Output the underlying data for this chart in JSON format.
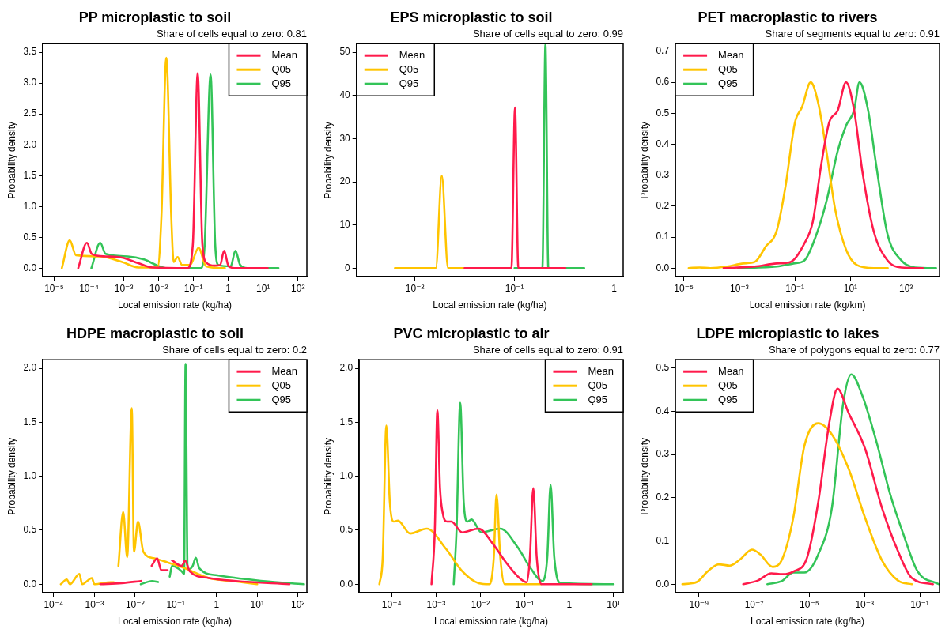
{
  "chart_data": [
    {
      "type": "line",
      "title": "PP microplastic to soil",
      "subtitle": "Share of cells equal to zero: 0.81",
      "xlabel": "Local emission rate (kg/ha)",
      "ylabel": "Probability density",
      "log": "x",
      "legend": "top right",
      "xlim": [
        4.7e-06,
        180
      ],
      "ylim": [
        -0.14,
        3.64
      ],
      "xticks": [
        {
          "value": 1e-05,
          "label": "10⁻⁵"
        },
        {
          "value": 0.0001,
          "label": "10⁻⁴"
        },
        {
          "value": 0.001,
          "label": "10⁻³"
        },
        {
          "value": 0.01,
          "label": "10⁻²"
        },
        {
          "value": 0.1,
          "label": "10⁻¹"
        },
        {
          "value": 1,
          "label": "1"
        },
        {
          "value": 10,
          "label": "10¹"
        },
        {
          "value": 100,
          "label": "10²"
        }
      ],
      "yticks": [
        {
          "value": 0,
          "label": "0.0"
        },
        0.5,
        {
          "value": 1,
          "label": "1.0"
        },
        1.5,
        {
          "value": 2,
          "label": "2.0"
        },
        2.5,
        {
          "value": 3,
          "label": "3.0"
        },
        3.5
      ],
      "series": [
        {
          "name": "Mean",
          "color": "#ff1a4b",
          "x": [
            4.9e-05,
            8.7e-05,
            0.00012,
            0.0003,
            0.00089,
            0.0026,
            0.0065,
            0.068,
            0.096,
            0.132,
            0.18,
            0.234,
            0.4,
            0.58,
            0.76,
            1.02,
            1.7,
            13.5
          ],
          "values": [
            0,
            0.41,
            0.23,
            0.19,
            0.17,
            0.08,
            0.01,
            0,
            0.39,
            3.16,
            0.39,
            0.09,
            0.04,
            0.05,
            0.28,
            0.03,
            0,
            0
          ]
        },
        {
          "name": "Q05",
          "color": "#ffc400",
          "x": [
            1.66e-05,
            2.8e-05,
            4.2e-05,
            0.00021,
            0.00089,
            0.0026,
            0.0093,
            0.012,
            0.0166,
            0.023,
            0.027,
            0.035,
            0.047,
            0.08,
            0.14,
            0.23,
            0.8
          ],
          "values": [
            0,
            0.45,
            0.21,
            0.19,
            0.1,
            0.01,
            0.01,
            0.84,
            3.41,
            0.84,
            0.1,
            0.18,
            0.05,
            0.05,
            0.33,
            0.03,
            0
          ]
        },
        {
          "name": "Q95",
          "color": "#33c458",
          "x": [
            0.000117,
            0.00021,
            0.0003,
            0.0013,
            0.0038,
            0.0093,
            0.016,
            0.166,
            0.21,
            0.31,
            0.42,
            0.52,
            1.17,
            1.6,
            2.2,
            3.5,
            27.5
          ],
          "values": [
            0,
            0.41,
            0.23,
            0.19,
            0.14,
            0.04,
            0,
            0,
            0.39,
            3.14,
            0.39,
            0.05,
            0.03,
            0.28,
            0.05,
            0,
            0
          ]
        }
      ]
    },
    {
      "type": "line",
      "title": "EPS microplastic to soil",
      "subtitle": "Share of cells equal to zero: 0.99",
      "xlabel": "Local emission rate (kg/ha)",
      "ylabel": "Probability density",
      "log": "x",
      "legend": "top left",
      "xlim": [
        0.00259,
        1.23
      ],
      "ylim": [
        -2,
        52
      ],
      "xticks": [
        {
          "value": 0.01,
          "label": "10⁻²"
        },
        {
          "value": 0.1,
          "label": "10⁻¹"
        },
        {
          "value": 1,
          "label": "1"
        }
      ],
      "yticks": [
        0,
        10,
        20,
        30,
        40,
        50
      ],
      "series": [
        {
          "name": "Mean",
          "color": "#ff1a4b",
          "x": [
            0.0315,
            0.093,
            0.101,
            0.109,
            0.323
          ],
          "values": [
            0,
            0,
            37.2,
            0,
            0
          ]
        },
        {
          "name": "Q05",
          "color": "#ffc400",
          "x": [
            0.0063,
            0.0162,
            0.0186,
            0.0215,
            0.0315
          ],
          "values": [
            0,
            0,
            21.4,
            0,
            0
          ]
        },
        {
          "name": "Q95",
          "color": "#33c458",
          "x": [
            0.1,
            0.19,
            0.204,
            0.218,
            0.5
          ],
          "values": [
            0,
            0,
            51.8,
            0,
            0
          ]
        }
      ]
    },
    {
      "type": "line",
      "title": "PET macroplastic to rivers",
      "subtitle": "Share of segments equal to zero: 0.91",
      "xlabel": "Local emission rate (kg/km)",
      "ylabel": "Probability density",
      "log": "x",
      "legend": "top left",
      "xlim": [
        5e-06,
        16000
      ],
      "ylim": [
        -0.028,
        0.725
      ],
      "xticks": [
        {
          "value": 1e-05,
          "label": "10⁻⁵"
        },
        {
          "value": 0.001,
          "label": "10⁻³"
        },
        {
          "value": 0.1,
          "label": "10⁻¹"
        },
        {
          "value": 10,
          "label": "10¹"
        },
        {
          "value": 1000,
          "label": "10³"
        }
      ],
      "yticks": [
        {
          "value": 0,
          "label": "0.0"
        },
        0.1,
        0.2,
        0.3,
        0.4,
        0.5,
        0.6,
        0.7
      ],
      "series": [
        {
          "name": "Mean",
          "color": "#ff1a4b",
          "x": [
            0.00027,
            0.0036,
            0.022,
            0.07,
            0.22,
            0.44,
            0.87,
            1.7,
            3.5,
            6.9,
            13.5,
            27,
            68,
            214,
            670,
            4000
          ],
          "values": [
            0,
            0.005,
            0.015,
            0.02,
            0.08,
            0.15,
            0.33,
            0.47,
            0.51,
            0.6,
            0.51,
            0.31,
            0.12,
            0.025,
            0.002,
            0
          ]
        },
        {
          "name": "Q05",
          "color": "#ffc400",
          "x": [
            1.5e-05,
            3.7e-05,
            9e-05,
            0.00036,
            0.0014,
            0.0036,
            0.009,
            0.022,
            0.045,
            0.1,
            0.18,
            0.37,
            0.7,
            1.4,
            2.8,
            6.9,
            17,
            69,
            220
          ],
          "values": [
            0,
            0.002,
            0,
            0.005,
            0.015,
            0.02,
            0.07,
            0.12,
            0.26,
            0.47,
            0.52,
            0.6,
            0.53,
            0.37,
            0.19,
            0.06,
            0.01,
            0,
            0
          ]
        },
        {
          "name": "Q95",
          "color": "#33c458",
          "x": [
            0.0009,
            0.022,
            0.09,
            0.22,
            0.55,
            1.4,
            3.5,
            6.9,
            13.5,
            21,
            43,
            85,
            214,
            670,
            2100,
            12000
          ],
          "values": [
            0,
            0.005,
            0.015,
            0.025,
            0.1,
            0.22,
            0.38,
            0.46,
            0.51,
            0.6,
            0.51,
            0.33,
            0.11,
            0.025,
            0.002,
            0
          ]
        }
      ]
    },
    {
      "type": "line",
      "title": "HDPE macroplastic to soil",
      "subtitle": "Share of cells equal to zero: 0.2",
      "xlabel": "Local emission rate (kg/ha)",
      "ylabel": "Probability density",
      "log": "x",
      "legend": "top right",
      "xlim": [
        5.4e-05,
        166
      ],
      "ylim": [
        -0.08,
        2.08
      ],
      "xticks": [
        {
          "value": 0.0001,
          "label": "10⁻⁴"
        },
        {
          "value": 0.001,
          "label": "10⁻³"
        },
        {
          "value": 0.01,
          "label": "10⁻²"
        },
        {
          "value": 0.1,
          "label": "10⁻¹"
        },
        {
          "value": 1,
          "label": "1"
        },
        {
          "value": 10,
          "label": "10¹"
        },
        {
          "value": 100,
          "label": "10²"
        }
      ],
      "yticks": [
        {
          "value": 0,
          "label": "0.0"
        },
        0.5,
        {
          "value": 1,
          "label": "1.0"
        },
        1.5,
        {
          "value": 2,
          "label": "2.0"
        }
      ],
      "series": [
        {
          "name": "Mean",
          "color": "#ff1a4b",
          "x": [
            0.0014,
            0.0047,
            0.0138,
            0.0174,
            0.0225,
            0.0255,
            0.035,
            0.044,
            0.063,
            0.066,
            0.076,
            0.081,
            0.14,
            0.17,
            0.22,
            0.65,
            3,
            62
          ],
          "values": [
            0,
            0.01,
            0.03,
            null,
            null,
            0.17,
            0.24,
            0.13,
            0.13,
            null,
            null,
            0.22,
            0.17,
            0.22,
            0.12,
            0.057,
            0.03,
            0
          ]
        },
        {
          "name": "Q05",
          "color": "#ffc400",
          "x": [
            0.00015,
            0.00021,
            0.00025,
            0.00043,
            0.0005,
            0.00087,
            0.001,
            0.0025,
            0.00299,
            0.003,
            0.0037,
            0.0039,
            0.0051,
            0.0064,
            0.0083,
            0.0094,
            0.0118,
            0.016,
            0.03,
            0.065,
            0.14,
            0.65,
            3,
            10
          ],
          "values": [
            0,
            0.044,
            0,
            0.095,
            0,
            0.057,
            0,
            0.018,
            0.018,
            null,
            null,
            0.17,
            0.67,
            0.25,
            1.63,
            0.3,
            0.58,
            0.3,
            0.24,
            0.2,
            0.16,
            0.057,
            0.026,
            0
          ]
        },
        {
          "name": "Q95",
          "color": "#33c458",
          "x": [
            0.0138,
            0.026,
            0.037,
            0.042,
            0.049,
            0.06,
            0.071,
            0.081,
            0.14,
            0.16,
            0.174,
            0.195,
            0.26,
            0.31,
            0.38,
            1.05,
            14,
            141
          ],
          "values": [
            0,
            0.03,
            0.02,
            null,
            null,
            null,
            0.07,
            0.17,
            0.12,
            0.095,
            2.04,
            0.13,
            0.17,
            0.245,
            0.147,
            0.082,
            0.03,
            0
          ]
        }
      ]
    },
    {
      "type": "line",
      "title": "PVC microplastic to air",
      "subtitle": "Share of cells equal to zero: 0.91",
      "xlabel": "Local emission rate (kg/ha)",
      "ylabel": "Probability density",
      "log": "x",
      "legend": "top right",
      "xlim": [
        1.85e-05,
        16.4
      ],
      "ylim": [
        -0.08,
        2.08
      ],
      "xticks": [
        {
          "value": 0.0001,
          "label": "10⁻⁴"
        },
        {
          "value": 0.001,
          "label": "10⁻³"
        },
        {
          "value": 0.01,
          "label": "10⁻²"
        },
        {
          "value": 0.1,
          "label": "10⁻¹"
        },
        {
          "value": 1,
          "label": "1"
        },
        {
          "value": 10,
          "label": "10¹"
        }
      ],
      "yticks": [
        {
          "value": 0,
          "label": "0.0"
        },
        0.5,
        {
          "value": 1,
          "label": "1.0"
        },
        1.5,
        {
          "value": 2,
          "label": "2.0"
        }
      ],
      "series": [
        {
          "name": "Mean",
          "color": "#ff1a4b",
          "x": [
            0.00079,
            0.00094,
            0.00107,
            0.00123,
            0.00143,
            0.00177,
            0.0022,
            0.0039,
            0.0091,
            0.0186,
            0.038,
            0.076,
            0.11,
            0.13,
            0.155,
            0.185,
            0.235,
            3.2
          ],
          "values": [
            0,
            0.51,
            1.61,
            0.89,
            0.65,
            0.58,
            0.58,
            0.48,
            0.515,
            0.38,
            0.2,
            0.057,
            0.018,
            0.25,
            0.89,
            0.25,
            0,
            0
          ]
        },
        {
          "name": "Q05",
          "color": "#ffc400",
          "x": [
            5.3e-05,
            6.3e-05,
            7.6e-05,
            9.1e-05,
            0.000112,
            0.000138,
            0.00026,
            0.00062,
            0.00166,
            0.0039,
            0.0091,
            0.016,
            0.02,
            0.023,
            0.028,
            0.035,
            0.23
          ],
          "values": [
            0,
            0.25,
            1.47,
            0.76,
            0.58,
            0.59,
            0.47,
            0.515,
            0.33,
            0.12,
            0.01,
            0,
            0.25,
            0.83,
            0.25,
            0,
            0
          ]
        },
        {
          "name": "Q95",
          "color": "#33c458",
          "x": [
            0.0025,
            0.0029,
            0.0035,
            0.0042,
            0.0051,
            0.0063,
            0.0105,
            0.028,
            0.067,
            0.136,
            0.245,
            0.32,
            0.38,
            0.46,
            0.65,
            10
          ],
          "values": [
            0,
            0.51,
            1.68,
            0.76,
            0.58,
            0.6,
            0.48,
            0.515,
            0.35,
            0.147,
            0.03,
            0.25,
            0.92,
            0.25,
            0.01,
            0
          ]
        }
      ]
    },
    {
      "type": "line",
      "title": "LDPE microplastic to lakes",
      "subtitle": "Share of polygons equal to zero: 0.77",
      "xlabel": "Local emission rate (kg/ha)",
      "ylabel": "Probability density",
      "log": "x",
      "legend": "top left",
      "xlim": [
        1.4e-10,
        0.52
      ],
      "ylim": [
        -0.02,
        0.519
      ],
      "xticks": [
        {
          "value": 1e-09,
          "label": "10⁻⁹"
        },
        {
          "value": 1e-07,
          "label": "10⁻⁷"
        },
        {
          "value": 1e-05,
          "label": "10⁻⁵"
        },
        {
          "value": 0.001,
          "label": "10⁻³"
        },
        {
          "value": 0.1,
          "label": "10⁻¹"
        }
      ],
      "yticks": [
        {
          "value": 0,
          "label": "0.0"
        },
        0.1,
        0.2,
        0.3,
        0.4,
        0.5
      ],
      "series": [
        {
          "name": "Mean",
          "color": "#ff1a4b",
          "x": [
            4e-08,
            1.3e-07,
            4.2e-07,
            1.05e-06,
            2.6e-06,
            8.3e-06,
            2.1e-05,
            5.2e-05,
            0.000105,
            0.00026,
            0.00105,
            0.0042,
            0.0166,
            0.052,
            0.3
          ],
          "values": [
            0,
            0.008,
            0.025,
            0.023,
            0.029,
            0.062,
            0.19,
            0.371,
            0.452,
            0.397,
            0.313,
            0.178,
            0.075,
            0.014,
            0
          ]
        },
        {
          "name": "Q05",
          "color": "#ffc400",
          "x": [
            2.5e-10,
            8.3e-10,
            2.1e-09,
            5.2e-09,
            1.3e-08,
            3.3e-08,
            8.3e-08,
            1.66e-07,
            4.7e-07,
            1.05e-06,
            2.6e-06,
            6.6e-06,
            2.1e-05,
            6.6e-05,
            0.00026,
            0.00105,
            0.0042,
            0.0166,
            0.052
          ],
          "values": [
            0,
            0.005,
            0.03,
            0.046,
            0.043,
            0.059,
            0.08,
            0.069,
            0.04,
            0.059,
            0.153,
            0.32,
            0.372,
            0.346,
            0.268,
            0.153,
            0.056,
            0.008,
            0
          ]
        },
        {
          "name": "Q95",
          "color": "#33c458",
          "x": [
            3e-07,
            1.05e-06,
            2.6e-06,
            6.6e-06,
            2.1e-05,
            6.6e-05,
            0.000166,
            0.00033,
            0.00083,
            0.0026,
            0.0083,
            0.026,
            0.083,
            0.49
          ],
          "values": [
            0,
            0.008,
            0.027,
            0.027,
            0.069,
            0.178,
            0.416,
            0.485,
            0.436,
            0.333,
            0.21,
            0.114,
            0.03,
            0
          ]
        }
      ]
    }
  ]
}
